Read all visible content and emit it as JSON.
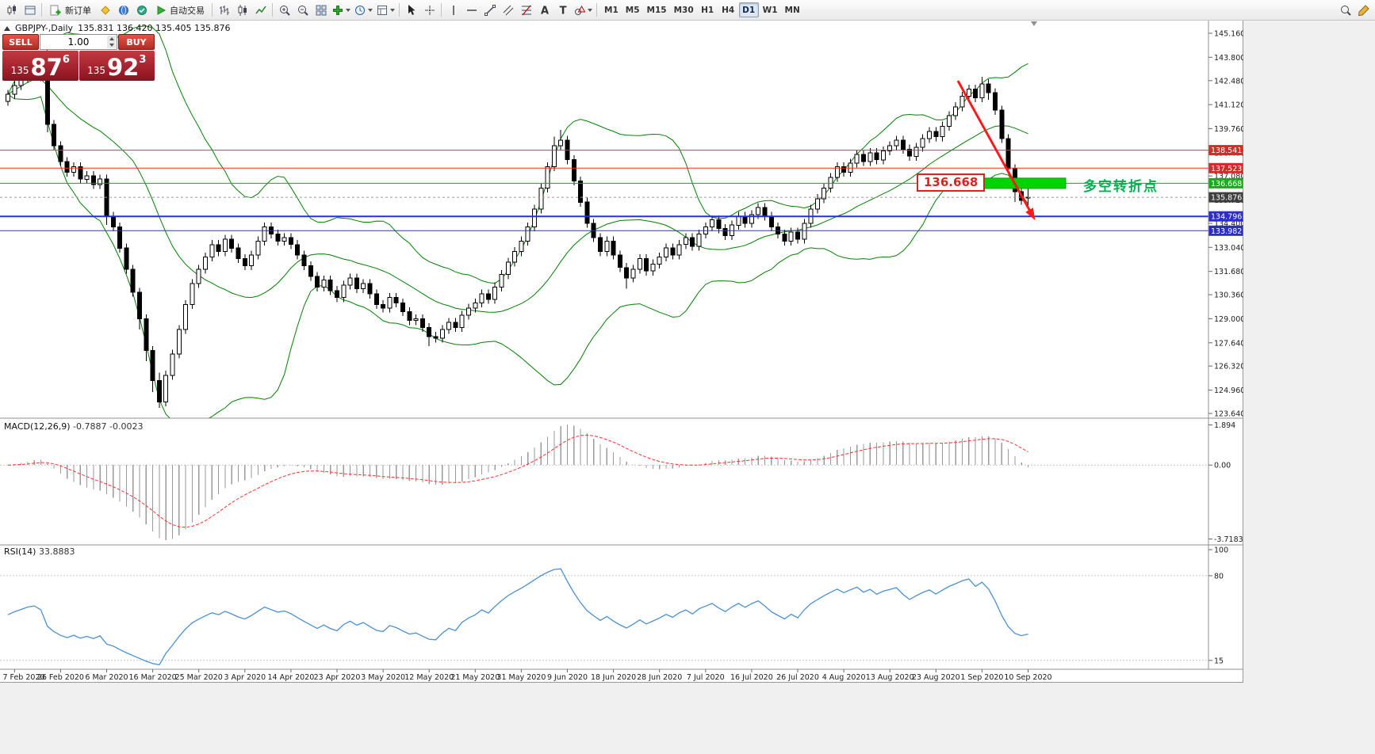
{
  "toolbar": {
    "new_order": "新订单",
    "auto_trading": "自动交易",
    "timeframes": [
      "M1",
      "M5",
      "M15",
      "M30",
      "H1",
      "H4",
      "D1",
      "W1",
      "MN"
    ],
    "active_timeframe": "D1"
  },
  "trade_panel": {
    "sell_label": "SELL",
    "buy_label": "BUY",
    "volume": "1.00",
    "sell_price_small": "135",
    "sell_price_big": "87",
    "sell_price_sup": "6",
    "buy_price_small": "135",
    "buy_price_big": "92",
    "buy_price_sup": "3"
  },
  "chart_header": {
    "symbol": "GBPJPY-,Daily",
    "ohlc": "135.831 136.420 135.405 135.876"
  },
  "annotations": {
    "pivot_price": "136.668",
    "pivot_text": "多空转折点",
    "arrow_color": "#ff1a1a",
    "zone_color": "#00d400"
  },
  "price_axis": {
    "ticks": [
      "145.160",
      "143.800",
      "142.480",
      "141.120",
      "139.760",
      "138.400",
      "137.080",
      "135.720",
      "134.400",
      "133.040",
      "131.680",
      "130.360",
      "129.000",
      "127.640",
      "126.320",
      "124.960",
      "123.640"
    ],
    "markers": [
      {
        "text": "138.541",
        "bg": "#d32a2a",
        "line": "#ff2a2a",
        "width": 1,
        "dashed": false
      },
      {
        "text": "137.523",
        "bg": "#d32a2a",
        "line": "#ff2a2a",
        "width": 1,
        "dashed": false
      },
      {
        "text": "136.668",
        "bg": "#0fb30f",
        "line": "#00b300",
        "width": 1,
        "dashed": false
      },
      {
        "text": "135.876",
        "bg": "#3f3f3f",
        "line": "#9a9a9a",
        "width": 1,
        "dashed": true
      },
      {
        "text": "134.796",
        "bg": "#2b2bd0",
        "line": "#2a2aff",
        "width": 2,
        "dashed": false
      },
      {
        "text": "133.982",
        "bg": "#2b2bd0",
        "line": "#2a2aff",
        "width": 1,
        "dashed": false
      }
    ]
  },
  "macd_panel": {
    "label": "MACD(12,26,9)",
    "values": "-0.7887 -0.0023",
    "scale_top": "1.894",
    "scale_zero": "0.00",
    "scale_bottom": "-3.7183"
  },
  "rsi_panel": {
    "label": "RSI(14)",
    "value": "33.8883",
    "scale": [
      "100",
      "80",
      "15"
    ],
    "levels": [
      80,
      15
    ]
  },
  "date_axis": [
    "7 Feb 2020",
    "26 Feb 2020",
    "6 Mar 2020",
    "16 Mar 2020",
    "25 Mar 2020",
    "3 Apr 2020",
    "14 Apr 2020",
    "23 Apr 2020",
    "3 May 2020",
    "12 May 2020",
    "21 May 2020",
    "31 May 2020",
    "9 Jun 2020",
    "18 Jun 2020",
    "28 Jun 2020",
    "7 Jul 2020",
    "16 Jul 2020",
    "26 Jul 2020",
    "4 Aug 2020",
    "13 Aug 2020",
    "23 Aug 2020",
    "1 Sep 2020",
    "10 Sep 2020"
  ],
  "chart_data": {
    "type": "candlestick",
    "symbol": "GBPJPY",
    "period": "Daily",
    "y_axis": {
      "top_price": 145.16,
      "bottom_price": 123.64
    },
    "current_price": 135.876,
    "bollinger": {
      "period": 20,
      "deviation": 2,
      "color": "#008000"
    },
    "o": [
      141.3,
      141.7,
      142.2,
      142.6,
      143.0,
      143.2,
      142.7,
      140.0,
      138.8,
      137.9,
      137.3,
      137.6,
      136.9,
      137.1,
      136.6,
      136.9,
      134.8,
      134.2,
      133.0,
      131.8,
      130.5,
      129.0,
      127.2,
      125.5,
      124.3,
      125.8,
      127.0,
      128.4,
      129.8,
      131.0,
      131.8,
      132.5,
      133.2,
      132.8,
      133.5,
      133.0,
      132.4,
      132.0,
      132.6,
      133.4,
      134.2,
      133.8,
      133.4,
      133.6,
      133.2,
      132.6,
      132.0,
      131.4,
      130.8,
      131.2,
      130.6,
      130.2,
      130.9,
      131.3,
      130.7,
      131.0,
      130.4,
      129.8,
      129.6,
      130.2,
      129.9,
      129.4,
      128.9,
      129.0,
      128.5,
      128.0,
      127.9,
      128.4,
      128.8,
      128.5,
      129.2,
      129.6,
      129.9,
      130.4,
      130.1,
      130.8,
      131.5,
      132.2,
      132.8,
      133.4,
      134.2,
      135.2,
      136.4,
      137.6,
      138.8,
      139.1,
      138.0,
      136.8,
      135.6,
      134.4,
      133.6,
      132.8,
      133.4,
      132.6,
      131.9,
      131.3,
      131.8,
      132.4,
      131.7,
      132.1,
      132.5,
      133.0,
      132.6,
      133.2,
      133.6,
      133.1,
      133.8,
      134.2,
      134.6,
      134.1,
      133.7,
      134.3,
      134.8,
      134.4,
      134.9,
      135.3,
      134.8,
      134.2,
      133.8,
      133.4,
      133.9,
      133.5,
      134.4,
      135.2,
      135.8,
      136.4,
      137.0,
      137.6,
      137.3,
      137.8,
      138.3,
      137.9,
      138.4,
      138.0,
      138.5,
      138.8,
      139.1,
      138.6,
      138.2,
      138.7,
      139.2,
      139.6,
      139.3,
      139.9,
      140.5,
      141.0,
      141.6,
      142.0,
      141.5,
      142.3,
      141.8,
      140.8,
      139.2,
      137.5,
      136.2,
      135.83
    ],
    "h": [
      141.95,
      142.45,
      142.85,
      143.25,
      143.45,
      143.45,
      142.95,
      140.25,
      139.05,
      138.15,
      137.85,
      137.85,
      137.35,
      137.35,
      137.15,
      137.15,
      135.05,
      134.45,
      133.25,
      132.05,
      130.75,
      129.25,
      127.45,
      125.95,
      126.05,
      127.25,
      128.65,
      130.05,
      131.25,
      132.05,
      132.75,
      133.45,
      133.45,
      133.75,
      133.75,
      133.25,
      132.65,
      132.85,
      133.65,
      134.45,
      134.45,
      134.05,
      133.85,
      133.85,
      133.45,
      132.85,
      132.25,
      131.65,
      131.45,
      131.45,
      130.85,
      131.15,
      131.55,
      131.55,
      131.25,
      131.25,
      130.65,
      130.05,
      130.45,
      130.45,
      130.15,
      129.65,
      129.25,
      129.25,
      128.75,
      128.25,
      128.65,
      129.05,
      129.05,
      129.45,
      129.85,
      130.15,
      130.65,
      130.65,
      131.05,
      131.75,
      132.45,
      133.05,
      133.65,
      134.45,
      135.45,
      136.65,
      137.85,
      139.3,
      139.7,
      139.35,
      138.25,
      137.05,
      135.85,
      134.65,
      133.85,
      133.65,
      133.65,
      132.85,
      132.15,
      132.05,
      132.65,
      132.65,
      132.35,
      132.75,
      133.25,
      133.25,
      133.45,
      133.85,
      133.85,
      134.05,
      134.45,
      134.85,
      134.85,
      134.35,
      134.55,
      135.05,
      135.05,
      135.15,
      135.55,
      135.55,
      135.05,
      134.45,
      134.05,
      134.15,
      134.15,
      134.65,
      135.45,
      136.05,
      136.65,
      137.25,
      137.85,
      137.85,
      138.05,
      138.55,
      138.55,
      138.65,
      138.65,
      138.75,
      139.05,
      139.35,
      139.35,
      138.85,
      138.95,
      139.45,
      139.85,
      139.85,
      140.15,
      140.75,
      141.25,
      141.85,
      142.25,
      142.25,
      142.7,
      142.55,
      142.05,
      141.05,
      139.45,
      137.75,
      136.45,
      136.42
    ],
    "l": [
      141.05,
      141.45,
      141.95,
      142.35,
      142.75,
      142.45,
      139.55,
      138.55,
      137.65,
      137.05,
      137.05,
      136.65,
      136.65,
      136.35,
      136.35,
      134.3,
      133.95,
      132.75,
      131.55,
      130.25,
      128.4,
      126.6,
      124.85,
      123.95,
      124.05,
      125.55,
      126.75,
      128.15,
      129.55,
      130.75,
      131.55,
      132.25,
      132.55,
      132.55,
      132.75,
      132.15,
      131.75,
      131.75,
      132.35,
      133.15,
      133.55,
      133.15,
      133.15,
      132.95,
      132.35,
      131.75,
      131.15,
      130.55,
      130.55,
      130.35,
      129.95,
      129.95,
      130.65,
      130.45,
      130.45,
      130.15,
      129.55,
      129.35,
      129.35,
      129.65,
      129.15,
      128.65,
      128.65,
      128.25,
      127.45,
      127.65,
      127.65,
      128.15,
      128.25,
      128.25,
      128.95,
      129.35,
      129.65,
      129.85,
      129.85,
      130.55,
      131.25,
      131.95,
      132.55,
      133.15,
      133.95,
      134.95,
      136.15,
      137.35,
      138.55,
      137.75,
      136.55,
      135.35,
      134.15,
      133.35,
      132.55,
      132.55,
      132.35,
      131.65,
      130.7,
      131.05,
      131.55,
      131.45,
      131.45,
      131.85,
      132.25,
      132.35,
      132.35,
      132.95,
      132.85,
      132.85,
      133.55,
      133.95,
      133.85,
      133.45,
      133.45,
      134.05,
      134.15,
      134.15,
      134.65,
      134.55,
      133.95,
      133.55,
      133.15,
      133.15,
      133.25,
      133.25,
      134.15,
      134.95,
      135.55,
      136.15,
      136.75,
      137.05,
      137.05,
      137.55,
      137.65,
      137.65,
      137.75,
      137.75,
      138.25,
      138.55,
      138.35,
      137.95,
      137.95,
      138.45,
      138.95,
      139.05,
      139.05,
      139.65,
      140.25,
      140.75,
      141.35,
      141.25,
      141.25,
      141.4,
      140.55,
      138.95,
      137.2,
      135.6,
      135.45,
      135.41
    ],
    "c": [
      141.7,
      142.2,
      142.6,
      143.0,
      143.2,
      142.7,
      140.0,
      138.8,
      137.9,
      137.3,
      137.6,
      136.9,
      137.1,
      136.6,
      136.9,
      134.8,
      134.2,
      133.0,
      131.8,
      130.5,
      129.0,
      127.2,
      125.5,
      124.3,
      125.8,
      127.0,
      128.4,
      129.8,
      131.0,
      131.8,
      132.5,
      133.2,
      132.8,
      133.5,
      133.0,
      132.4,
      132.0,
      132.6,
      133.4,
      134.2,
      133.8,
      133.4,
      133.6,
      133.2,
      132.6,
      132.0,
      131.4,
      130.8,
      131.2,
      130.6,
      130.2,
      130.9,
      131.3,
      130.7,
      131.0,
      130.4,
      129.8,
      129.6,
      130.2,
      129.9,
      129.4,
      128.9,
      129.0,
      128.5,
      128.0,
      127.9,
      128.4,
      128.8,
      128.5,
      129.2,
      129.6,
      129.9,
      130.4,
      130.1,
      130.8,
      131.5,
      132.2,
      132.8,
      133.4,
      134.2,
      135.2,
      136.4,
      137.6,
      138.8,
      139.1,
      138.0,
      136.8,
      135.6,
      134.4,
      133.6,
      132.8,
      133.4,
      132.6,
      131.9,
      131.3,
      131.8,
      132.4,
      131.7,
      132.1,
      132.5,
      133.0,
      132.6,
      133.2,
      133.6,
      133.1,
      133.8,
      134.2,
      134.6,
      134.1,
      133.7,
      134.3,
      134.8,
      134.4,
      134.9,
      135.3,
      134.8,
      134.2,
      133.8,
      133.4,
      133.9,
      133.5,
      134.4,
      135.2,
      135.8,
      136.4,
      137.0,
      137.6,
      137.3,
      137.8,
      138.3,
      137.9,
      138.4,
      138.0,
      138.5,
      138.8,
      139.1,
      138.6,
      138.2,
      138.7,
      139.2,
      139.6,
      139.3,
      139.9,
      140.5,
      141.0,
      141.6,
      142.0,
      141.5,
      142.3,
      141.8,
      140.8,
      139.2,
      137.5,
      136.2,
      135.7,
      135.88
    ]
  }
}
